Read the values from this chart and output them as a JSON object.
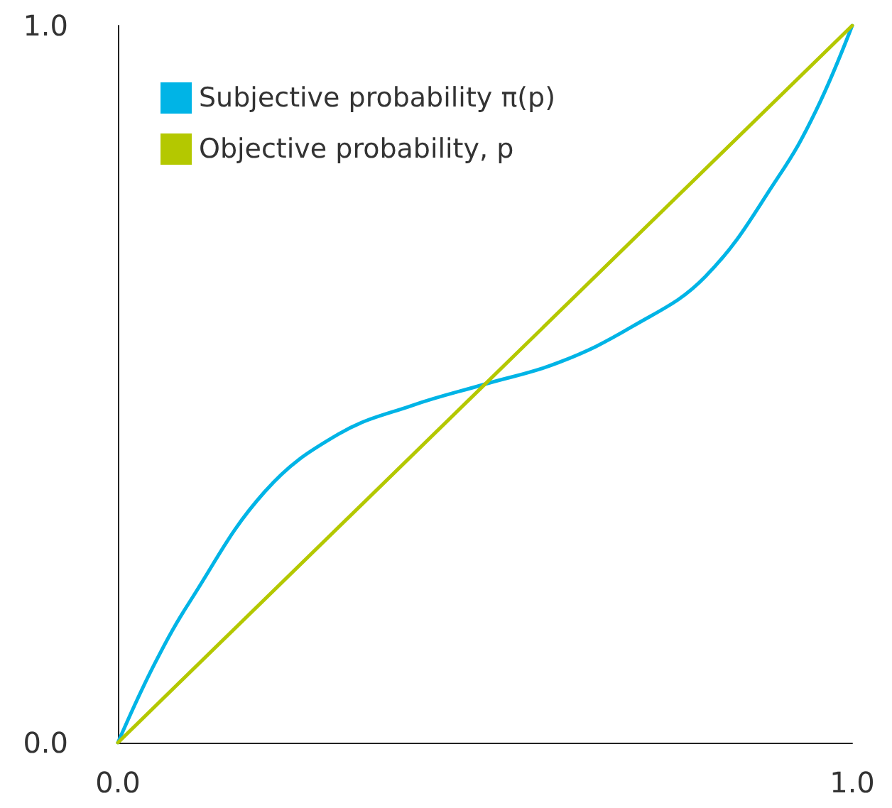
{
  "chart_data": {
    "type": "line",
    "x": [
      0,
      0.05,
      0.1,
      0.2,
      0.3,
      0.4,
      0.5,
      0.6,
      0.7,
      0.8,
      0.9,
      0.95,
      1
    ],
    "series": [
      {
        "name": "Subjective probability π(p)",
        "color": "#00b4e6",
        "values": [
          0,
          0.11,
          0.2,
          0.35,
          0.43,
          0.47,
          0.5,
          0.53,
          0.58,
          0.65,
          0.79,
          0.88,
          1
        ]
      },
      {
        "name": "Objective probability, p",
        "color": "#b4c800",
        "x": [
          0,
          1
        ],
        "values": [
          0,
          1
        ]
      }
    ],
    "xlim": [
      0,
      1
    ],
    "ylim": [
      0,
      1
    ],
    "xticks": [
      {
        "value": 0,
        "label": "0.0"
      },
      {
        "value": 1,
        "label": "1.0"
      }
    ],
    "yticks": [
      {
        "value": 0,
        "label": "0.0"
      },
      {
        "value": 1,
        "label": "1.0"
      }
    ],
    "grid": false,
    "legend": "top left",
    "marker": "none",
    "line_style": "solid"
  }
}
